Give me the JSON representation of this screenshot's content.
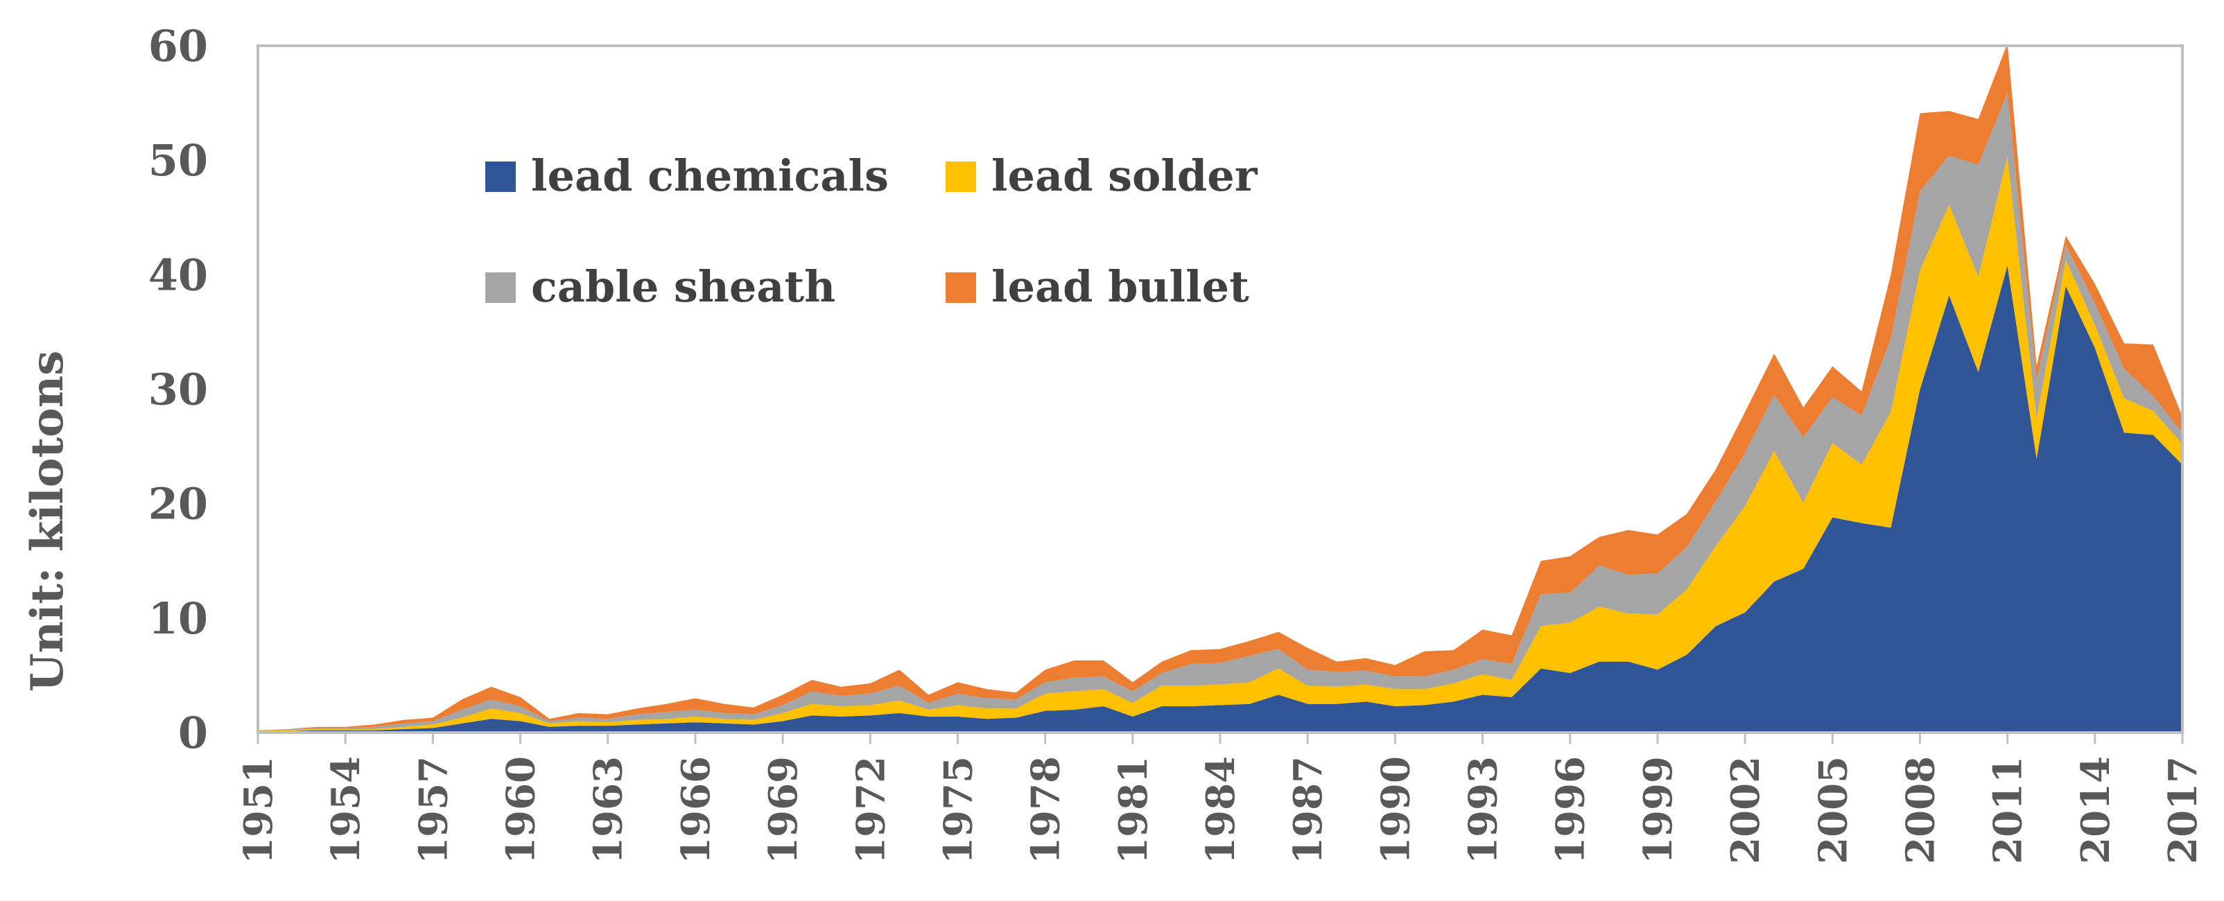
{
  "chart_data": {
    "type": "area",
    "stacked": true,
    "ylabel": "Unit: kilotons",
    "xlabel": "",
    "title": "",
    "ylim": [
      0,
      60
    ],
    "yticks": [
      0,
      10,
      20,
      30,
      40,
      50,
      60
    ],
    "x_ticks": [
      "1951",
      "1954",
      "1957",
      "1960",
      "1963",
      "1966",
      "1969",
      "1972",
      "1975",
      "1978",
      "1981",
      "1984",
      "1987",
      "1990",
      "1993",
      "1996",
      "1999",
      "2002",
      "2005",
      "2008",
      "2011",
      "2014",
      "2017"
    ],
    "x": [
      1951,
      1952,
      1953,
      1954,
      1955,
      1956,
      1957,
      1958,
      1959,
      1960,
      1961,
      1962,
      1963,
      1964,
      1965,
      1966,
      1967,
      1968,
      1969,
      1970,
      1971,
      1972,
      1973,
      1974,
      1975,
      1976,
      1977,
      1978,
      1979,
      1980,
      1981,
      1982,
      1983,
      1984,
      1985,
      1986,
      1987,
      1988,
      1989,
      1990,
      1991,
      1992,
      1993,
      1994,
      1995,
      1996,
      1997,
      1998,
      1999,
      2000,
      2001,
      2002,
      2003,
      2004,
      2005,
      2006,
      2007,
      2008,
      2009,
      2010,
      2011,
      2012,
      2013,
      2014,
      2015,
      2016,
      2017
    ],
    "legend_position": "top-left inside",
    "grid": false,
    "series": [
      {
        "name": "lead chemicals",
        "color": "#2F5597",
        "values": [
          0.1,
          0.1,
          0.2,
          0.2,
          0.2,
          0.3,
          0.4,
          0.8,
          1.2,
          1.0,
          0.5,
          0.6,
          0.6,
          0.7,
          0.8,
          0.9,
          0.8,
          0.7,
          1.0,
          1.5,
          1.4,
          1.5,
          1.7,
          1.4,
          1.4,
          1.2,
          1.3,
          1.9,
          2.0,
          2.3,
          1.4,
          2.3,
          2.3,
          2.4,
          2.5,
          3.3,
          2.5,
          2.5,
          2.7,
          2.3,
          2.4,
          2.7,
          3.3,
          3.1,
          5.6,
          5.2,
          6.2,
          6.2,
          5.5,
          6.8,
          9.3,
          10.5,
          13.2,
          14.3,
          18.8,
          18.3,
          17.9,
          30.0,
          38.2,
          31.5,
          40.8,
          23.9,
          39.0,
          33.6,
          26.2,
          26.0,
          23.4
        ]
      },
      {
        "name": "lead solder",
        "color": "#FFC000",
        "values": [
          0.05,
          0.1,
          0.1,
          0.1,
          0.1,
          0.2,
          0.3,
          0.5,
          0.9,
          0.7,
          0.3,
          0.4,
          0.3,
          0.4,
          0.4,
          0.5,
          0.4,
          0.4,
          0.7,
          1.0,
          0.9,
          0.9,
          1.1,
          0.6,
          1.0,
          0.9,
          0.8,
          1.5,
          1.6,
          1.5,
          1.2,
          1.8,
          1.8,
          1.8,
          1.9,
          2.3,
          1.6,
          1.5,
          1.5,
          1.5,
          1.4,
          1.6,
          1.8,
          1.5,
          3.7,
          4.4,
          4.8,
          4.2,
          4.8,
          5.7,
          7.0,
          9.3,
          11.4,
          5.8,
          6.5,
          5.1,
          10.1,
          10.4,
          7.9,
          8.3,
          9.5,
          3.5,
          2.3,
          2.0,
          3.0,
          2.1,
          1.8
        ]
      },
      {
        "name": "cable sheath",
        "color": "#A5A5A5",
        "values": [
          0.05,
          0.1,
          0.1,
          0.1,
          0.2,
          0.3,
          0.3,
          0.7,
          0.8,
          0.6,
          0.2,
          0.3,
          0.3,
          0.5,
          0.6,
          0.6,
          0.5,
          0.5,
          0.7,
          1.1,
          0.9,
          1.0,
          1.3,
          0.6,
          1.0,
          0.9,
          0.8,
          1.0,
          1.2,
          1.1,
          1.0,
          1.1,
          1.9,
          1.9,
          2.3,
          1.7,
          1.4,
          1.3,
          1.2,
          1.1,
          1.1,
          1.2,
          1.3,
          1.4,
          2.8,
          2.6,
          3.6,
          3.4,
          3.6,
          3.7,
          3.9,
          4.6,
          4.9,
          5.7,
          4.0,
          4.3,
          6.4,
          6.9,
          4.3,
          9.8,
          5.6,
          3.4,
          1.3,
          1.9,
          2.6,
          1.3,
          1.0
        ]
      },
      {
        "name": "lead bullet",
        "color": "#ED7D31",
        "values": [
          0.0,
          0.0,
          0.1,
          0.1,
          0.2,
          0.3,
          0.3,
          0.9,
          1.1,
          0.8,
          0.2,
          0.4,
          0.4,
          0.5,
          0.7,
          1.0,
          0.8,
          0.6,
          0.9,
          1.0,
          0.8,
          0.9,
          1.4,
          0.7,
          1.0,
          0.8,
          0.6,
          1.1,
          1.5,
          1.4,
          0.8,
          1.0,
          1.2,
          1.2,
          1.3,
          1.5,
          1.9,
          0.9,
          1.1,
          1.0,
          2.2,
          1.7,
          2.6,
          2.5,
          2.9,
          3.2,
          2.5,
          3.9,
          3.4,
          2.9,
          2.8,
          3.6,
          3.6,
          2.6,
          2.7,
          2.1,
          5.6,
          6.8,
          3.9,
          4.0,
          4.3,
          1.2,
          0.8,
          1.7,
          2.2,
          4.5,
          1.4
        ]
      }
    ]
  }
}
